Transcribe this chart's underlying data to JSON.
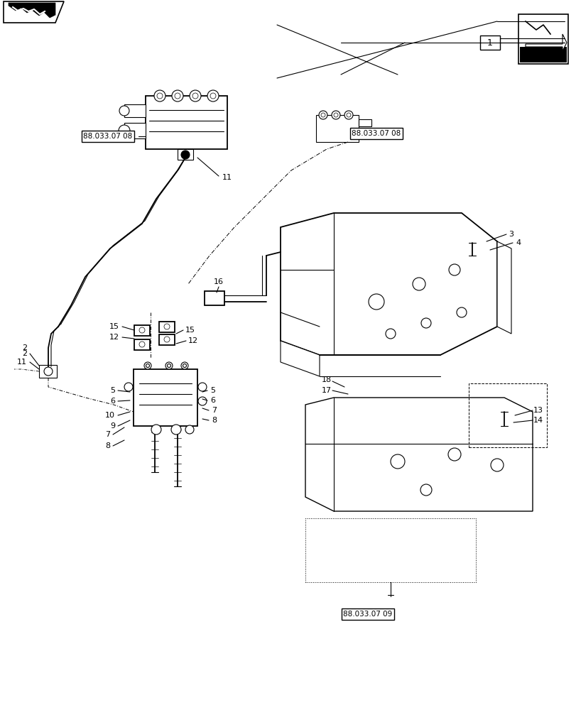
{
  "bg_color": "#ffffff",
  "lc": "#000000",
  "fig_w": 8.12,
  "fig_h": 10.0,
  "dpi": 100,
  "box1": "88.033.07 08",
  "box2": "88.033.07 08",
  "box3": "88.033.07 09",
  "label1": "1",
  "label2": "2",
  "label3": "3",
  "label4": "4",
  "label5": "5",
  "label6": "6",
  "label7": "7",
  "label8": "8",
  "label9": "9",
  "label10": "10",
  "label11": "11",
  "label12": "12",
  "label13": "13",
  "label14": "14",
  "label15": "15",
  "label16": "16",
  "label17": "17",
  "label18": "18"
}
